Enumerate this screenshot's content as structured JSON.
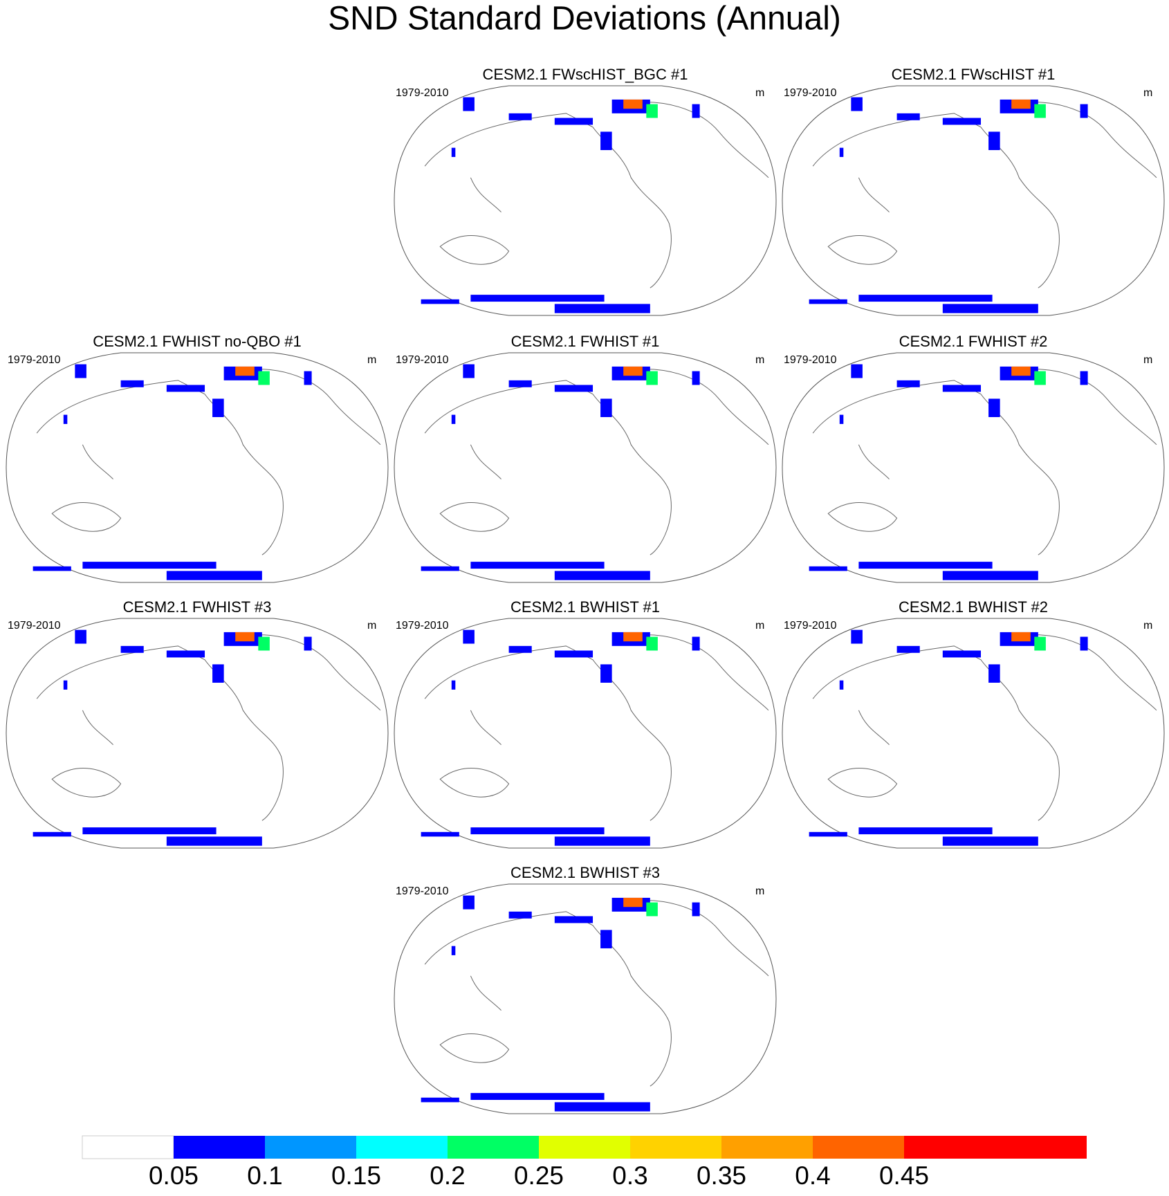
{
  "title": "SND Standard Deviations (Annual)",
  "panels": [
    {
      "title": "CESM2.1 FWscHIST_BGC #1",
      "period": "1979-2010",
      "units": "m"
    },
    {
      "title": "CESM2.1 FWscHIST #1",
      "period": "1979-2010",
      "units": "m"
    },
    {
      "title": "CESM2.1 FWHIST no-QBO #1",
      "period": "1979-2010",
      "units": "m"
    },
    {
      "title": "CESM2.1 FWHIST #1",
      "period": "1979-2010",
      "units": "m"
    },
    {
      "title": "CESM2.1 FWHIST #2",
      "period": "1979-2010",
      "units": "m"
    },
    {
      "title": "CESM2.1 FWHIST #3",
      "period": "1979-2010",
      "units": "m"
    },
    {
      "title": "CESM2.1 BWHIST #1",
      "period": "1979-2010",
      "units": "m"
    },
    {
      "title": "CESM2.1 BWHIST #2",
      "period": "1979-2010",
      "units": "m"
    },
    {
      "title": "CESM2.1 BWHIST #3",
      "period": "1979-2010",
      "units": "m"
    }
  ],
  "colorbar": {
    "colors": [
      "#ffffff",
      "#0000ff",
      "#0096ff",
      "#00ffff",
      "#00ff64",
      "#e1ff00",
      "#ffd200",
      "#ffa000",
      "#ff6400",
      "#ff0000",
      "#ff0000"
    ],
    "ticks": [
      0.05,
      0.1,
      0.15,
      0.2,
      0.25,
      0.3,
      0.35,
      0.4,
      0.45
    ]
  }
}
